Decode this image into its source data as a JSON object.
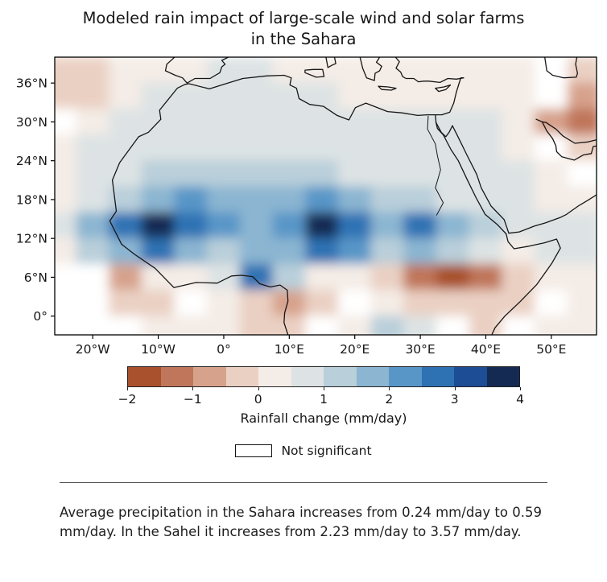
{
  "chart_data": {
    "type": "heatmap",
    "title": "Modeled rain impact of large-scale wind and solar farms in the Sahara",
    "xlabel": "",
    "ylabel": "",
    "lon_range": [
      -25.8,
      56.9
    ],
    "lat_range": [
      -2.9,
      40
    ],
    "x_ticks": [
      {
        "label": "20°W",
        "lon": -20
      },
      {
        "label": "10°W",
        "lon": -10
      },
      {
        "label": "0°",
        "lon": 0
      },
      {
        "label": "10°E",
        "lon": 10
      },
      {
        "label": "20°E",
        "lon": 20
      },
      {
        "label": "30°E",
        "lon": 30
      },
      {
        "label": "40°E",
        "lon": 40
      },
      {
        "label": "50°E",
        "lon": 50
      }
    ],
    "y_ticks": [
      {
        "label": "36°N",
        "lat": 36
      },
      {
        "label": "30°N",
        "lat": 30
      },
      {
        "label": "24°N",
        "lat": 24
      },
      {
        "label": "18°N",
        "lat": 18
      },
      {
        "label": "12°N",
        "lat": 12
      },
      {
        "label": "6°N",
        "lat": 6
      },
      {
        "label": "0°",
        "lat": 0
      }
    ],
    "grid": {
      "lons": [
        -25,
        -20,
        -15,
        -10,
        -5,
        0,
        5,
        10,
        15,
        20,
        25,
        30,
        35,
        40,
        45,
        50,
        55
      ],
      "lats": [
        38,
        34,
        30,
        26,
        22,
        18,
        14,
        10,
        6,
        2,
        -2
      ],
      "values": [
        [
          -0.4,
          -0.4,
          0.3,
          0.4,
          0.4,
          0.5,
          0.5,
          0.4,
          0.4,
          0.3,
          0.3,
          0.3,
          0.4,
          0.3,
          0.3,
          0.1,
          -0.3
        ],
        [
          -0.5,
          -0.3,
          0.4,
          0.5,
          0.5,
          0.5,
          0.6,
          0.5,
          0.5,
          0.4,
          0.4,
          0.4,
          0.4,
          0.4,
          0.3,
          0.0,
          -0.8
        ],
        [
          0.1,
          0.4,
          0.5,
          0.6,
          0.6,
          0.6,
          0.6,
          0.6,
          0.6,
          0.5,
          0.5,
          0.5,
          0.5,
          0.5,
          0.3,
          -1.0,
          -1.3
        ],
        [
          0.3,
          0.5,
          0.6,
          0.7,
          0.8,
          0.8,
          0.8,
          0.7,
          0.7,
          0.6,
          0.6,
          0.6,
          0.6,
          0.6,
          0.4,
          0.1,
          -0.4
        ],
        [
          0.3,
          0.6,
          0.8,
          1.1,
          1.4,
          1.3,
          1.1,
          1.0,
          1.1,
          0.9,
          0.7,
          0.7,
          0.7,
          0.7,
          0.5,
          0.3,
          0.1
        ],
        [
          0.4,
          0.9,
          1.4,
          1.9,
          2.2,
          1.9,
          1.6,
          1.6,
          2.2,
          1.7,
          1.1,
          1.1,
          0.9,
          0.8,
          0.6,
          0.4,
          0.4
        ],
        [
          0.6,
          1.6,
          2.6,
          3.6,
          2.7,
          2.2,
          1.9,
          2.1,
          3.8,
          2.9,
          1.9,
          2.7,
          1.7,
          1.1,
          0.8,
          0.7,
          0.9
        ],
        [
          0.4,
          1.1,
          1.9,
          2.6,
          1.9,
          1.3,
          1.6,
          1.7,
          2.6,
          2.1,
          1.4,
          1.9,
          1.2,
          0.6,
          0.3,
          0.6,
          0.9
        ],
        [
          0.1,
          0.1,
          -0.7,
          0.2,
          0.4,
          0.6,
          2.9,
          1.2,
          0.4,
          0.2,
          -0.3,
          -1.3,
          -1.7,
          -1.1,
          -0.4,
          0.2,
          0.3
        ],
        [
          0.1,
          0.0,
          -0.5,
          -0.2,
          0.1,
          0.3,
          -0.4,
          -0.8,
          -0.3,
          0.1,
          0.4,
          -0.2,
          -0.5,
          -0.5,
          -0.4,
          0.1,
          0.2
        ],
        [
          0.1,
          0.1,
          0.0,
          0.2,
          0.2,
          0.2,
          -0.3,
          -0.5,
          0.0,
          0.3,
          1.4,
          0.5,
          0.1,
          -0.3,
          0.1,
          0.2,
          0.2
        ]
      ]
    },
    "colorbar": {
      "min": -2,
      "max": 4,
      "step": 0.5,
      "tick_labels": [
        "−2",
        "−1",
        "0",
        "1",
        "2",
        "3",
        "4"
      ],
      "label": "Rainfall change (mm/day)",
      "colors": [
        "#a9512c",
        "#c0765a",
        "#d7a28c",
        "#ead0c3",
        "#f4ece6",
        "#dde3e4",
        "#b9cfda",
        "#8bb5d1",
        "#5996c8",
        "#2e72b4",
        "#1d4d94",
        "#152a52"
      ],
      "not_significant_color": "#ffffff",
      "ns_threshold": 0.2
    },
    "map": {
      "coastlines": {
        "west_africa": [
          [
            -5.9,
            35.8
          ],
          [
            -7.1,
            35.2
          ],
          [
            -9.8,
            31.8
          ],
          [
            -9.6,
            30.4
          ],
          [
            -11.5,
            28.4
          ],
          [
            -13,
            27.7
          ],
          [
            -15.9,
            23.7
          ],
          [
            -17,
            21
          ],
          [
            -16.4,
            16.2
          ],
          [
            -17.4,
            14.7
          ],
          [
            -15.6,
            11.1
          ],
          [
            -13.7,
            9.6
          ],
          [
            -10.5,
            7.4
          ],
          [
            -7.6,
            4.4
          ],
          [
            -4.2,
            5.2
          ],
          [
            -1,
            5.1
          ],
          [
            1.2,
            6.2
          ],
          [
            2.7,
            6.3
          ],
          [
            4.4,
            6.1
          ],
          [
            5.5,
            5
          ],
          [
            7.1,
            4.5
          ],
          [
            8.6,
            4.8
          ],
          [
            9.7,
            4
          ],
          [
            9.8,
            2.3
          ],
          [
            9.3,
            0.5
          ],
          [
            9.2,
            -1
          ],
          [
            9.8,
            -2.9
          ]
        ],
        "mediterranean": [
          [
            -5.9,
            35.8
          ],
          [
            -5.3,
            35.9
          ],
          [
            -2.2,
            35.1
          ],
          [
            0,
            35.8
          ],
          [
            2.9,
            36.7
          ],
          [
            6.5,
            37.1
          ],
          [
            9.2,
            37.2
          ],
          [
            10.3,
            36.8
          ],
          [
            10.1,
            35.7
          ],
          [
            11.1,
            35.2
          ],
          [
            11.5,
            33.6
          ],
          [
            13.1,
            32.7
          ],
          [
            15.2,
            32.4
          ],
          [
            17.3,
            31
          ],
          [
            19.1,
            30.3
          ],
          [
            20.1,
            32.2
          ],
          [
            21.7,
            32.9
          ],
          [
            25,
            31.6
          ],
          [
            27.2,
            31.4
          ],
          [
            29.6,
            31
          ],
          [
            31.1,
            31.1
          ],
          [
            32.3,
            31.1
          ],
          [
            33.3,
            31.1
          ],
          [
            34.5,
            31.5
          ],
          [
            35.1,
            32.9
          ],
          [
            35.5,
            34.6
          ],
          [
            35.9,
            35.9
          ],
          [
            36.2,
            36.8
          ],
          [
            36.6,
            36.8
          ]
        ],
        "turkey": [
          [
            36.6,
            36.8
          ],
          [
            35.5,
            36.6
          ],
          [
            34.2,
            36.7
          ],
          [
            33,
            36.1
          ],
          [
            31.3,
            36.3
          ],
          [
            30.5,
            36.3
          ],
          [
            29.7,
            36.2
          ],
          [
            29,
            36.7
          ],
          [
            27.8,
            36.7
          ],
          [
            27.3,
            37
          ],
          [
            27,
            37.7
          ],
          [
            26.3,
            38.3
          ],
          [
            26.8,
            39.3
          ],
          [
            26.2,
            40
          ]
        ],
        "iberia": [
          [
            -7.5,
            40
          ],
          [
            -8.7,
            38.9
          ],
          [
            -8.9,
            37.9
          ],
          [
            -7.4,
            37.2
          ],
          [
            -6.3,
            36.8
          ],
          [
            -5.6,
            36
          ],
          [
            -4.4,
            36.7
          ],
          [
            -2.1,
            36.7
          ],
          [
            -0.6,
            37.6
          ],
          [
            -0.3,
            38.5
          ],
          [
            0.2,
            38.9
          ],
          [
            -0.3,
            39.5
          ],
          [
            0.7,
            40
          ]
        ],
        "sicily": [
          [
            12.4,
            38
          ],
          [
            13.7,
            38.1
          ],
          [
            15.1,
            38.1
          ],
          [
            15.3,
            37
          ],
          [
            14.1,
            36.9
          ],
          [
            12.4,
            37.6
          ],
          [
            12.4,
            38
          ]
        ],
        "italy_toe": [
          [
            15.6,
            40
          ],
          [
            15.9,
            38.4
          ],
          [
            16.6,
            38.8
          ],
          [
            17.1,
            39
          ],
          [
            16.9,
            40
          ]
        ],
        "greece": [
          [
            20.8,
            40
          ],
          [
            21.2,
            38.3
          ],
          [
            21.8,
            36.8
          ],
          [
            23,
            36.4
          ],
          [
            23.1,
            37.5
          ],
          [
            23.8,
            37.9
          ],
          [
            24.1,
            38.6
          ],
          [
            23.3,
            39.2
          ],
          [
            23.8,
            40
          ]
        ],
        "crete": [
          [
            23.6,
            35.5
          ],
          [
            25.1,
            35.4
          ],
          [
            26.3,
            35.2
          ],
          [
            25.6,
            34.9
          ],
          [
            24.1,
            35
          ],
          [
            23.6,
            35.5
          ]
        ],
        "cyprus": [
          [
            32.3,
            35.2
          ],
          [
            33.6,
            35.4
          ],
          [
            34.6,
            35.7
          ],
          [
            33.9,
            35
          ],
          [
            32.8,
            34.7
          ],
          [
            32.3,
            35.2
          ]
        ],
        "sinai": [
          [
            32.3,
            31.1
          ],
          [
            32.4,
            29.9
          ],
          [
            33.2,
            28.4
          ],
          [
            33.9,
            27.7
          ],
          [
            34.4,
            28.4
          ],
          [
            34.9,
            29.4
          ]
        ],
        "red_sea_africa": [
          [
            32.4,
            29.9
          ],
          [
            32.6,
            29
          ],
          [
            33.5,
            28
          ],
          [
            34.7,
            25.7
          ],
          [
            35.8,
            24
          ],
          [
            37.1,
            21.2
          ],
          [
            38.5,
            18.3
          ],
          [
            39.9,
            15.7
          ],
          [
            41.8,
            14.1
          ],
          [
            43.1,
            12.7
          ]
        ],
        "arabia": [
          [
            34.9,
            29.4
          ],
          [
            35.8,
            27.6
          ],
          [
            37.1,
            24.9
          ],
          [
            38.6,
            21.9
          ],
          [
            39.3,
            19.8
          ],
          [
            40.8,
            17
          ],
          [
            42.8,
            14.9
          ],
          [
            43.5,
            12.8
          ],
          [
            45.1,
            13
          ],
          [
            47.4,
            13.9
          ],
          [
            49.1,
            14.4
          ],
          [
            51.3,
            15.2
          ],
          [
            52.3,
            15.7
          ],
          [
            54.1,
            17
          ],
          [
            55.6,
            17.9
          ],
          [
            57,
            18.8
          ]
        ],
        "horn_of_africa": [
          [
            43.1,
            12.7
          ],
          [
            43.4,
            11.5
          ],
          [
            44.3,
            10.4
          ],
          [
            46.6,
            10.8
          ],
          [
            48.9,
            11.3
          ],
          [
            50.8,
            11.9
          ],
          [
            51.4,
            10.5
          ],
          [
            50.1,
            8.2
          ],
          [
            47.8,
            4.9
          ],
          [
            45.3,
            2.3
          ],
          [
            42.9,
            0
          ],
          [
            41.4,
            -1.8
          ],
          [
            40.9,
            -2.9
          ]
        ],
        "persian_gulf_south": [
          [
            48.6,
            30
          ],
          [
            49.3,
            28.6
          ],
          [
            50.2,
            27.4
          ],
          [
            50.7,
            26.3
          ],
          [
            50.8,
            25.4
          ],
          [
            51.6,
            24.6
          ],
          [
            53.5,
            24.1
          ],
          [
            54.9,
            24.9
          ],
          [
            56.1,
            25.1
          ],
          [
            56.4,
            26.2
          ],
          [
            57,
            26.3
          ]
        ],
        "iran_coast": [
          [
            47.7,
            30.4
          ],
          [
            48.6,
            30
          ],
          [
            49.2,
            29.9
          ],
          [
            50.7,
            28.9
          ],
          [
            51.8,
            27.8
          ],
          [
            53.6,
            26.7
          ],
          [
            55.6,
            26.9
          ],
          [
            56.8,
            27.2
          ]
        ],
        "caspian": [
          [
            49,
            40
          ],
          [
            49.3,
            37.9
          ],
          [
            50.2,
            37.2
          ],
          [
            51.9,
            36.8
          ],
          [
            53.8,
            36.9
          ],
          [
            54,
            37.5
          ],
          [
            53.7,
            38.9
          ],
          [
            53.9,
            40
          ]
        ]
      },
      "rivers": {
        "nile": [
          [
            31.2,
            30.9
          ],
          [
            31.1,
            28.9
          ],
          [
            32.3,
            26.6
          ],
          [
            32.6,
            24.8
          ],
          [
            33.1,
            22.6
          ],
          [
            32.3,
            19.8
          ],
          [
            33.5,
            17.5
          ],
          [
            32.5,
            15.6
          ]
        ]
      }
    }
  },
  "legend": {
    "not_significant": "Not significant"
  },
  "caption": "Average precipitation in the Sahara increases from 0.24 mm/day to 0.59 mm/day. In the Sahel it increases from 2.23 mm/day to 3.57 mm/day."
}
